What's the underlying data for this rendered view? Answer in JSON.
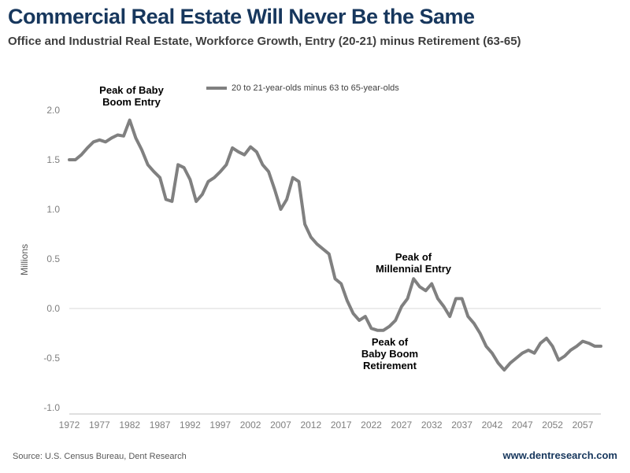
{
  "header": {
    "title": "Commercial Real Estate Will Never Be the Same",
    "subtitle": "Office and Industrial Real Estate, Workforce Growth, Entry (20-21) minus Retirement (63-65)"
  },
  "footer": {
    "source": "Source: U.S. Census Bureau, Dent Research",
    "website": "www.dentresearch.com"
  },
  "chart_data": {
    "type": "line",
    "title": "Commercial Real Estate Will Never Be the Same",
    "subtitle": "Office and Industrial Real Estate, Workforce Growth, Entry (20-21) minus Retirement (63-65)",
    "legend": "20 to 21-year-olds minus 63 to 65-year-olds",
    "legend_position": "top",
    "ylabel": "Millions",
    "xlabel": "",
    "grid": false,
    "zero_line": true,
    "line_color": "#808080",
    "axis_color": "#BFBFBF",
    "tick_color": "#7F7F7F",
    "ylim": [
      -1.0,
      2.0
    ],
    "yticks": [
      2.0,
      1.5,
      1.0,
      0.5,
      0.0,
      -0.5,
      -1.0
    ],
    "xticks": [
      1972,
      1977,
      1982,
      1987,
      1992,
      1997,
      2002,
      2007,
      2012,
      2017,
      2022,
      2027,
      2032,
      2037,
      2042,
      2047,
      2052,
      2057
    ],
    "x": [
      1972,
      1973,
      1974,
      1975,
      1976,
      1977,
      1978,
      1979,
      1980,
      1981,
      1982,
      1983,
      1984,
      1985,
      1986,
      1987,
      1988,
      1989,
      1990,
      1991,
      1992,
      1993,
      1994,
      1995,
      1996,
      1997,
      1998,
      1999,
      2000,
      2001,
      2002,
      2003,
      2004,
      2005,
      2006,
      2007,
      2008,
      2009,
      2010,
      2011,
      2012,
      2013,
      2014,
      2015,
      2016,
      2017,
      2018,
      2019,
      2020,
      2021,
      2022,
      2023,
      2024,
      2025,
      2026,
      2027,
      2028,
      2029,
      2030,
      2031,
      2032,
      2033,
      2034,
      2035,
      2036,
      2037,
      2038,
      2039,
      2040,
      2041,
      2042,
      2043,
      2044,
      2045,
      2046,
      2047,
      2048,
      2049,
      2050,
      2051,
      2052,
      2053,
      2054,
      2055,
      2056,
      2057,
      2058,
      2059,
      2060
    ],
    "values": [
      1.5,
      1.5,
      1.55,
      1.62,
      1.68,
      1.7,
      1.68,
      1.72,
      1.75,
      1.74,
      1.9,
      1.72,
      1.6,
      1.45,
      1.38,
      1.32,
      1.1,
      1.08,
      1.45,
      1.42,
      1.3,
      1.08,
      1.15,
      1.28,
      1.32,
      1.38,
      1.45,
      1.62,
      1.58,
      1.55,
      1.63,
      1.58,
      1.45,
      1.38,
      1.2,
      1.0,
      1.1,
      1.32,
      1.28,
      0.85,
      0.72,
      0.65,
      0.6,
      0.55,
      0.3,
      0.25,
      0.08,
      -0.05,
      -0.12,
      -0.08,
      -0.2,
      -0.22,
      -0.22,
      -0.18,
      -0.12,
      0.02,
      0.1,
      0.3,
      0.22,
      0.18,
      0.25,
      0.1,
      0.02,
      -0.08,
      0.1,
      0.1,
      -0.08,
      -0.15,
      -0.25,
      -0.38,
      -0.45,
      -0.55,
      -0.62,
      -0.55,
      -0.5,
      -0.45,
      -0.42,
      -0.45,
      -0.35,
      -0.3,
      -0.38,
      -0.52,
      -0.48,
      -0.42,
      -0.38,
      -0.33,
      -0.35,
      -0.38,
      -0.38
    ],
    "annotations": {
      "baby_boom_entry": "Peak of Baby\nBoom Entry",
      "millennial_entry": "Peak of\nMillennial Entry",
      "baby_boom_retirement": "Peak of\nBaby Boom\nRetirement"
    }
  }
}
